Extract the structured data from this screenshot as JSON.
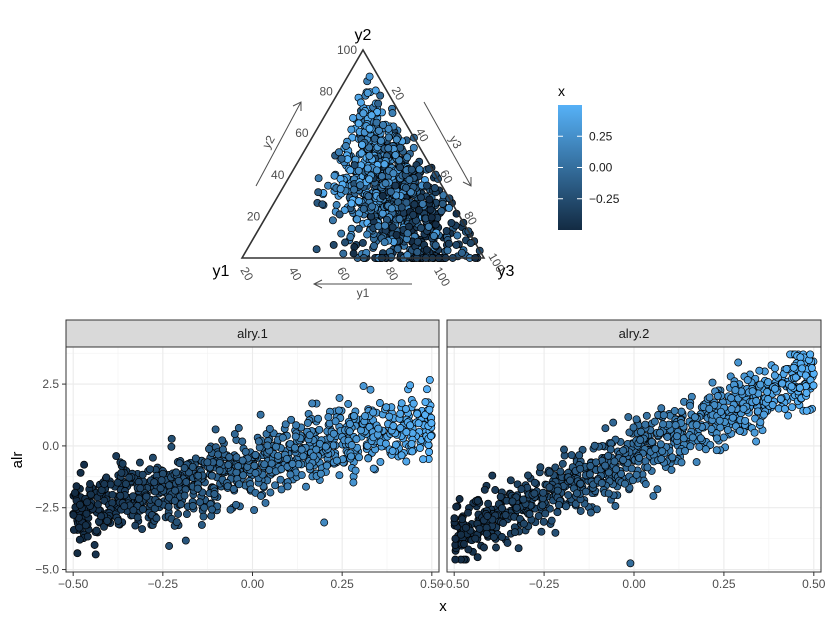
{
  "chart_data": [
    {
      "type": "scatter",
      "subtype": "ternary",
      "vertex_labels": {
        "top": "y2",
        "left": "y1",
        "right": "y3"
      },
      "axis_arrow_labels": {
        "left": "y2",
        "right": "y3",
        "bottom": "y1"
      },
      "tick_labels": {
        "y2": [
          "20",
          "40",
          "60",
          "80",
          "100"
        ],
        "y3": [
          "20",
          "40",
          "60",
          "80",
          "100"
        ],
        "y1": [
          "100",
          "80",
          "60",
          "40",
          "20"
        ]
      },
      "point_count": 1000,
      "color_variable": "x"
    },
    {
      "type": "scatter",
      "subtype": "faceted",
      "facets": [
        "alry.1",
        "alry.2"
      ],
      "xlabel": "x",
      "ylabel": "alr",
      "xlim": [
        -0.52,
        0.52
      ],
      "ylim": [
        -5.1,
        4.0
      ],
      "x_ticks": [
        "-0.50",
        "-0.25",
        "0.00",
        "0.25",
        "0.50"
      ],
      "y_ticks": [
        "2.5",
        "0.0",
        "-2.5",
        "-5.0"
      ],
      "x_tick_values": [
        -0.5,
        -0.25,
        0.0,
        0.25,
        0.5
      ],
      "y_tick_values": [
        2.5,
        0.0,
        -2.5,
        -5.0
      ],
      "trends": [
        {
          "facet": "alry.1",
          "intercept": -0.8,
          "slope": 3.8,
          "noise_sd": 0.72
        },
        {
          "facet": "alry.2",
          "intercept": -0.35,
          "slope": 6.6,
          "noise_sd": 0.62
        }
      ],
      "outliers": [
        {
          "facet": "alry.1",
          "x": 0.2,
          "y": -3.1
        },
        {
          "facet": "alry.2",
          "x": -0.01,
          "y": -4.75
        },
        {
          "facet": "alry.2",
          "x": 0.49,
          "y": 3.7
        }
      ],
      "grid": true
    }
  ],
  "legend": {
    "title": "x",
    "ticks": [
      "0.25",
      "0.00",
      "−0.25"
    ],
    "tick_values": [
      0.25,
      0.0,
      -0.25
    ],
    "range": [
      -0.5,
      0.5
    ],
    "colors": {
      "low": "#132B43",
      "high": "#56B1F7"
    }
  },
  "point_count_per_facet": 1000
}
